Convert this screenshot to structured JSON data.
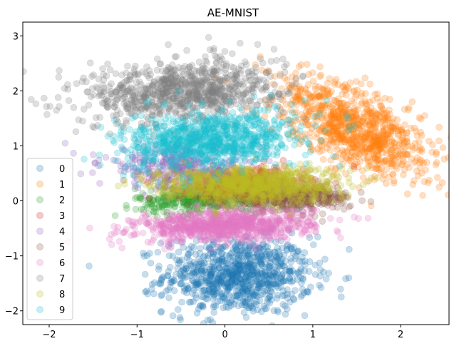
{
  "chart_data": {
    "type": "scatter",
    "title": "AE-MNIST",
    "xlabel": "",
    "ylabel": "",
    "xlim": [
      -2.3,
      2.55
    ],
    "ylim": [
      -2.25,
      3.25
    ],
    "xticks": [
      -2,
      -1,
      0,
      1,
      2
    ],
    "yticks": [
      -2,
      -1,
      0,
      1,
      2,
      3
    ],
    "xtick_labels": [
      "−2",
      "−1",
      "0",
      "1",
      "2"
    ],
    "ytick_labels": [
      "−2",
      "−1",
      "0",
      "1",
      "2",
      "3"
    ],
    "grid": false,
    "legend_position": "lower-left",
    "marker_alpha": 0.25,
    "series": [
      {
        "name": "0",
        "color": "#1f77b4",
        "center": [
          0.15,
          -1.35
        ],
        "spread": [
          0.42,
          0.35
        ],
        "angle_deg": 0,
        "count": 900
      },
      {
        "name": "1",
        "color": "#ff7f0e",
        "center": [
          1.5,
          1.3
        ],
        "spread": [
          0.55,
          0.28
        ],
        "angle_deg": -48,
        "count": 900
      },
      {
        "name": "2",
        "color": "#2ca02c",
        "center": [
          -0.2,
          0.05
        ],
        "spread": [
          0.4,
          0.13
        ],
        "angle_deg": 5,
        "count": 450
      },
      {
        "name": "3",
        "color": "#d62728",
        "center": [
          0.2,
          0.3
        ],
        "spread": [
          0.35,
          0.15
        ],
        "angle_deg": 0,
        "count": 350
      },
      {
        "name": "4",
        "color": "#9467bd",
        "center": [
          -0.5,
          0.6
        ],
        "spread": [
          0.45,
          0.2
        ],
        "angle_deg": -5,
        "count": 350
      },
      {
        "name": "5",
        "color": "#8c564b",
        "center": [
          0.75,
          0.05
        ],
        "spread": [
          0.35,
          0.12
        ],
        "angle_deg": 0,
        "count": 400
      },
      {
        "name": "6",
        "color": "#e377c2",
        "center": [
          0.0,
          -0.45
        ],
        "spread": [
          0.5,
          0.14
        ],
        "angle_deg": 3,
        "count": 850
      },
      {
        "name": "7",
        "color": "#7f7f7f",
        "center": [
          -0.45,
          2.0
        ],
        "spread": [
          0.55,
          0.28
        ],
        "angle_deg": 8,
        "count": 900
      },
      {
        "name": "8",
        "color": "#bcbd22",
        "center": [
          0.25,
          0.3
        ],
        "spread": [
          0.5,
          0.16
        ],
        "angle_deg": 0,
        "count": 850
      },
      {
        "name": "9",
        "color": "#17becf",
        "center": [
          -0.15,
          1.1
        ],
        "spread": [
          0.5,
          0.25
        ],
        "angle_deg": 10,
        "count": 900
      }
    ]
  }
}
